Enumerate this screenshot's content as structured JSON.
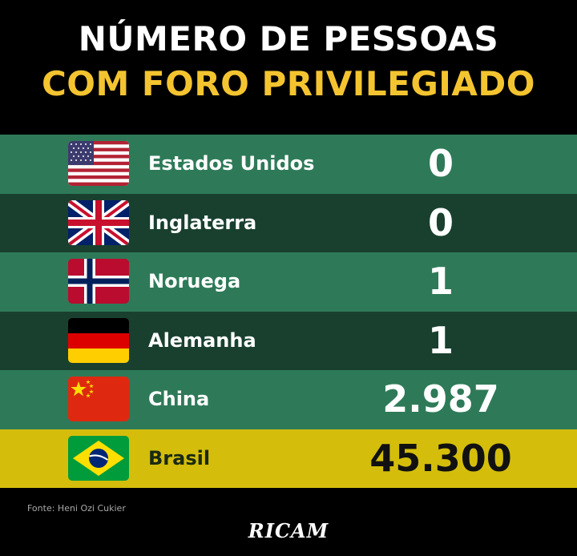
{
  "title": {
    "line1": "NÚMERO DE PESSOAS",
    "line2": "COM FORO PRIVILEGIADO"
  },
  "rows": [
    {
      "country": "Estados Unidos",
      "count": "0",
      "flag_icon": "usa-flag-icon"
    },
    {
      "country": "Inglaterra",
      "count": "0",
      "flag_icon": "uk-flag-icon"
    },
    {
      "country": "Noruega",
      "count": "1",
      "flag_icon": "norway-flag-icon"
    },
    {
      "country": "Alemanha",
      "count": "1",
      "flag_icon": "germany-flag-icon"
    },
    {
      "country": "China",
      "count": "2.987",
      "flag_icon": "china-flag-icon"
    },
    {
      "country": "Brasil",
      "count": "45.300",
      "flag_icon": "brazil-flag-icon"
    }
  ],
  "source": "Fonte: Heni Ozi Cukier",
  "logo": "RICAM",
  "colors": {
    "background": "#000000",
    "title_white": "#ffffff",
    "title_yellow": "#f4c430",
    "row_light": "#2e7a58",
    "row_dark": "#19402f",
    "row_highlight": "#d4be0b"
  }
}
